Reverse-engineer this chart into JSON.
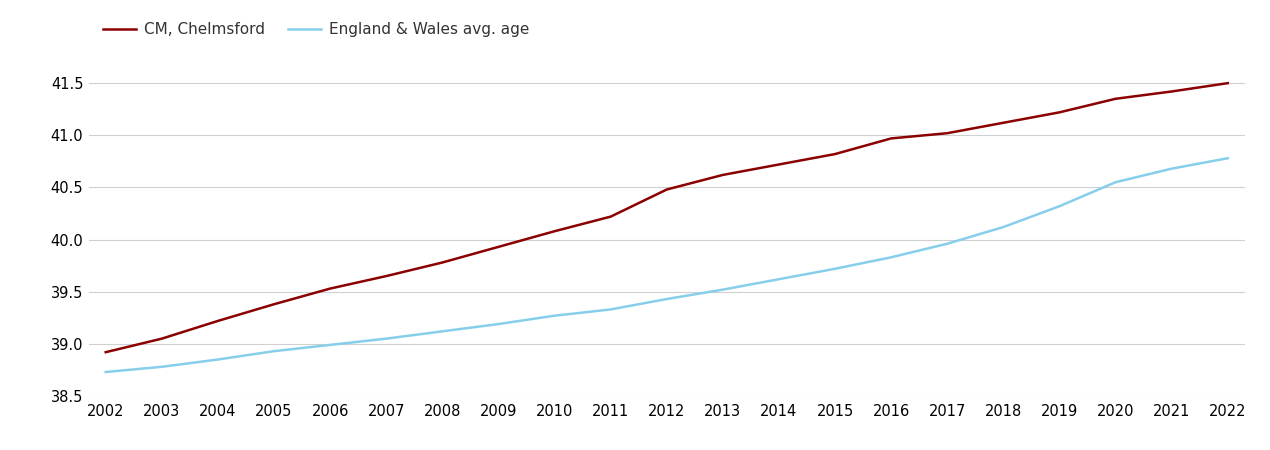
{
  "years": [
    2002,
    2003,
    2004,
    2005,
    2006,
    2007,
    2008,
    2009,
    2010,
    2011,
    2012,
    2013,
    2014,
    2015,
    2016,
    2017,
    2018,
    2019,
    2020,
    2021,
    2022
  ],
  "chelmsford": [
    38.92,
    39.05,
    39.22,
    39.38,
    39.53,
    39.65,
    39.78,
    39.93,
    40.08,
    40.22,
    40.48,
    40.62,
    40.72,
    40.82,
    40.97,
    41.02,
    41.12,
    41.22,
    41.35,
    41.42,
    41.5
  ],
  "england_wales": [
    38.73,
    38.78,
    38.85,
    38.93,
    38.99,
    39.05,
    39.12,
    39.19,
    39.27,
    39.33,
    39.43,
    39.52,
    39.62,
    39.72,
    39.83,
    39.96,
    40.12,
    40.32,
    40.55,
    40.68,
    40.78
  ],
  "chelmsford_color": "#8B0000",
  "england_wales_color": "#87CEEB",
  "chelmsford_label": "CM, Chelmsford",
  "england_wales_label": "England & Wales avg. age",
  "ylim_min": 38.5,
  "ylim_max": 41.65,
  "yticks": [
    38.5,
    39.0,
    39.5,
    40.0,
    40.5,
    41.0,
    41.5
  ],
  "background_color": "#ffffff",
  "grid_color": "#d0d0d0",
  "line_width": 1.8,
  "legend_fontsize": 11,
  "tick_fontsize": 10.5
}
